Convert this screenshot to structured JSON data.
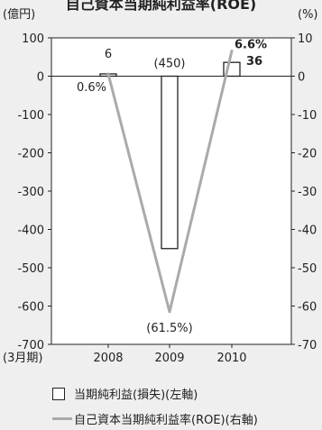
{
  "chart_data": {
    "type": "bar+line",
    "title": "自己資本当期純利益率(ROE)",
    "categories": [
      "2008",
      "2009",
      "2010"
    ],
    "x_prefix_label": "(3月期)",
    "left_axis": {
      "unit_label": "(億円)",
      "ylim": [
        -700,
        100
      ],
      "ticks": [
        100,
        0,
        -100,
        -200,
        -300,
        -400,
        -500,
        -600,
        -700
      ]
    },
    "right_axis": {
      "unit_label": "(%)",
      "ylim": [
        -70,
        10
      ],
      "ticks": [
        10,
        0,
        -10,
        -20,
        -30,
        -40,
        -50,
        -60,
        -70
      ]
    },
    "series": [
      {
        "name": "当期純利益(損失)(左軸)",
        "type": "bar",
        "axis": "left",
        "values": [
          6,
          -450,
          36
        ],
        "labels": [
          "6",
          "(450)",
          "36"
        ]
      },
      {
        "name": "自己資本当期純利益率(ROE)(右軸)",
        "type": "line",
        "axis": "right",
        "color": "#aaaaaa",
        "values": [
          0.6,
          -61.5,
          6.6
        ],
        "labels": [
          "0.6%",
          "(61.5%)",
          "6.6%"
        ]
      }
    ]
  }
}
